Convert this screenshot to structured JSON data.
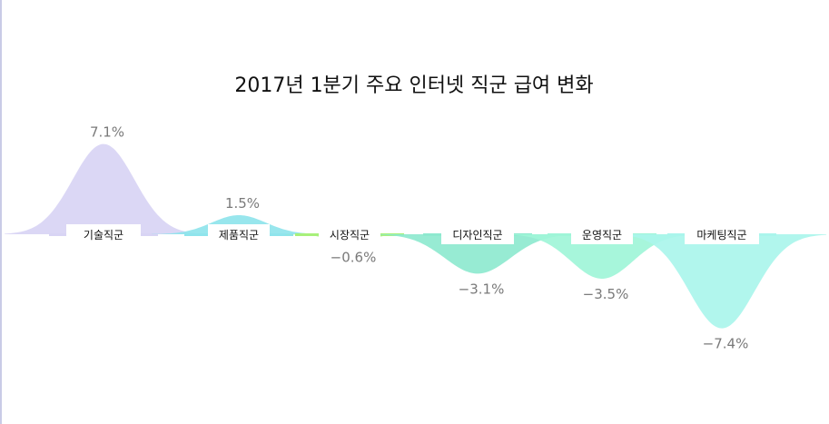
{
  "chart_data": {
    "type": "area",
    "title": "2017년 1분기 주요 인터넷 직군 급여 변화",
    "categories": [
      "기술직군",
      "제품직군",
      "시장직군",
      "디자인직군",
      "운영직군",
      "마케팅직군"
    ],
    "values": [
      7.1,
      1.5,
      -0.6,
      -3.1,
      -3.5,
      -7.4
    ],
    "value_labels": [
      "7.1%",
      "1.5%",
      "−0.6%",
      "−3.1%",
      "−3.5%",
      "−7.4%"
    ],
    "colors": [
      "#d8d4f4",
      "#8fe4ec",
      "#a8f07a",
      "#8ee9cf",
      "#9ff5d8",
      "#aaf5ec"
    ],
    "legend": "none",
    "grid": false
  }
}
